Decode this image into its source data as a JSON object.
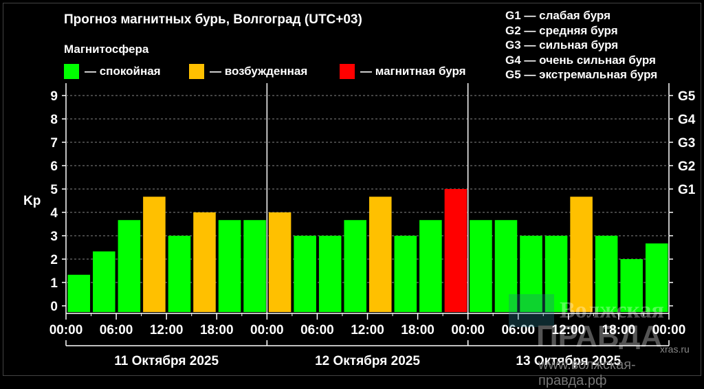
{
  "title": "Прогноз магнитных бурь, Волгоград (UTC+03)",
  "legend": {
    "heading": "Магнитосфера",
    "items": [
      {
        "label": "— спокойная",
        "color": "#00ff00"
      },
      {
        "label": "— возбужденная",
        "color": "#ffc000"
      },
      {
        "label": "— магнитная буря",
        "color": "#ff0000"
      }
    ]
  },
  "g_scale": [
    "G1 — слабая буря",
    "G2 — средняя буря",
    "G3 — сильная буря",
    "G4 — очень сильная буря",
    "G5 — экстремальная буря"
  ],
  "watermark": {
    "logo_line1": "Волжская",
    "logo_line2": "ПРАВДА",
    "url": "www.волжская-правда.рф",
    "small": "xras.ru"
  },
  "chart_data": {
    "type": "bar",
    "ylabel": "Kp",
    "ylim": [
      0,
      9
    ],
    "y_ticks": [
      "0",
      "1",
      "2",
      "3",
      "4",
      "5",
      "6",
      "7",
      "8",
      "9"
    ],
    "right_ticks": [
      "G1",
      "G2",
      "G3",
      "G4",
      "G5"
    ],
    "x_tick_labels": [
      "00:00",
      "06:00",
      "12:00",
      "18:00",
      "00:00",
      "06:00",
      "12:00",
      "18:00",
      "00:00",
      "06:00",
      "12:00",
      "18:00",
      "00:00"
    ],
    "days": [
      "11 Октября 2025",
      "12 Октября 2025",
      "13 Октября 2025"
    ],
    "grid": true,
    "values": [
      1.33,
      2.33,
      3.67,
      4.67,
      3.0,
      4.0,
      3.67,
      3.67,
      4.0,
      3.0,
      3.0,
      3.67,
      4.67,
      3.0,
      3.67,
      5.0,
      3.67,
      3.67,
      3.0,
      3.0,
      4.67,
      3.0,
      2.0,
      2.67
    ],
    "levels": [
      "quiet",
      "quiet",
      "quiet",
      "active",
      "quiet",
      "active",
      "quiet",
      "quiet",
      "active",
      "quiet",
      "quiet",
      "quiet",
      "active",
      "quiet",
      "quiet",
      "storm",
      "quiet",
      "quiet",
      "quiet",
      "quiet",
      "active",
      "quiet",
      "quiet",
      "quiet"
    ],
    "colors": {
      "quiet": "#00ff00",
      "active": "#ffc000",
      "storm": "#ff0000"
    }
  }
}
